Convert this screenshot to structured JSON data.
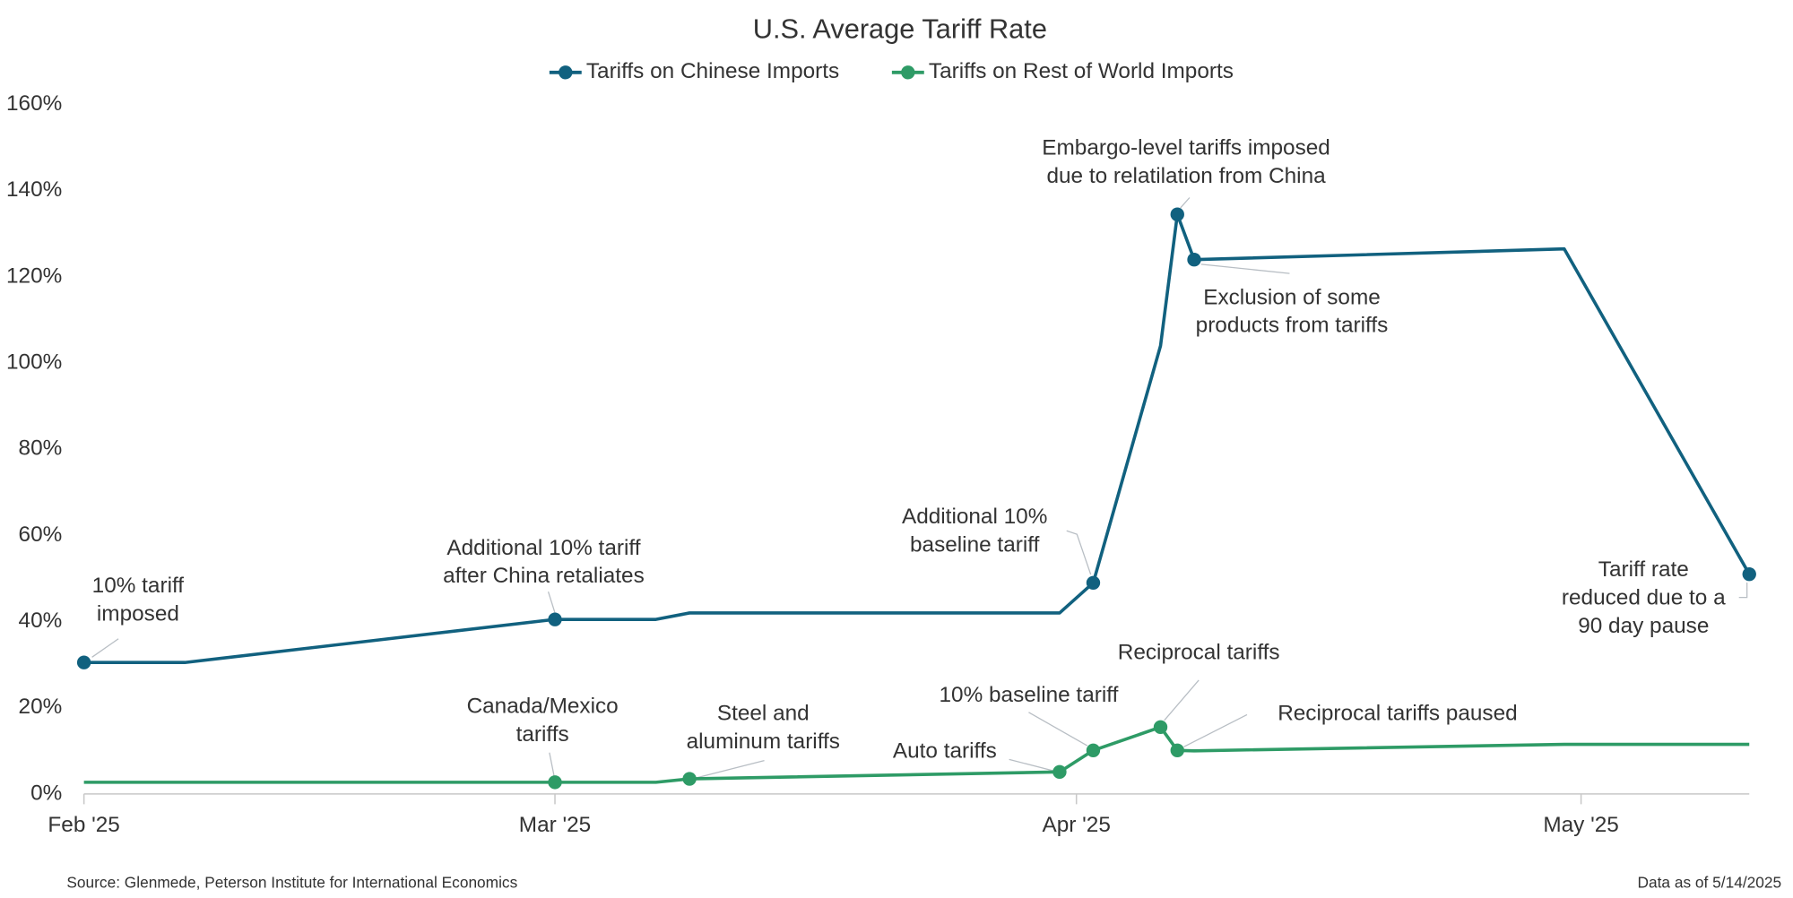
{
  "chart_data": {
    "type": "line",
    "title": "U.S. Average Tariff Rate",
    "x": [
      0,
      6,
      28,
      34,
      36,
      58,
      60,
      64,
      65,
      66,
      88,
      99
    ],
    "xlim": [
      0,
      99
    ],
    "xticks": [
      {
        "value": 0,
        "label": "Feb '25"
      },
      {
        "value": 28,
        "label": "Mar '25"
      },
      {
        "value": 59,
        "label": "Apr '25"
      },
      {
        "value": 89,
        "label": "May '25"
      }
    ],
    "ylim": [
      0,
      160
    ],
    "yticks": [
      {
        "value": 0,
        "label": "0%"
      },
      {
        "value": 20,
        "label": "20%"
      },
      {
        "value": 40,
        "label": "40%"
      },
      {
        "value": 60,
        "label": "60%"
      },
      {
        "value": 80,
        "label": "80%"
      },
      {
        "value": 100,
        "label": "100%"
      },
      {
        "value": 120,
        "label": "120%"
      },
      {
        "value": 140,
        "label": "140%"
      },
      {
        "value": 160,
        "label": "160%"
      }
    ],
    "grid": false,
    "legend": "top",
    "series": [
      {
        "name": "Tariffs on Chinese Imports",
        "color": "#11617f",
        "values": [
          30.5,
          30.5,
          40.5,
          40.5,
          42,
          42,
          49,
          104,
          134.5,
          124,
          126.5,
          51
        ]
      },
      {
        "name": "Tariffs on Rest of World Imports",
        "color": "#2e9b66",
        "values": [
          2.7,
          2.7,
          2.7,
          2.7,
          3.5,
          5.1,
          10.1,
          15.5,
          10.1,
          10,
          11.5,
          11.5
        ]
      }
    ],
    "annotations": [
      {
        "lines": [
          "10% tariff",
          "imposed"
        ],
        "series": 0,
        "index": 0
      },
      {
        "lines": [
          "Additional 10% tariff",
          "after China retaliates"
        ],
        "series": 0,
        "index": 2
      },
      {
        "lines": [
          "Additional 10%",
          "baseline tariff"
        ],
        "series": 0,
        "index": 6
      },
      {
        "lines": [
          "Embargo-level tariffs imposed",
          "due to relatilation from China"
        ],
        "series": 0,
        "index": 8
      },
      {
        "lines": [
          "Exclusion of some",
          "products from tariffs"
        ],
        "series": 0,
        "index": 9
      },
      {
        "lines": [
          "Tariff rate",
          "reduced due to a",
          "90 day pause"
        ],
        "series": 0,
        "index": 11
      },
      {
        "lines": [
          "Canada/Mexico",
          "tariffs"
        ],
        "series": 1,
        "index": 2
      },
      {
        "lines": [
          "Steel and",
          "aluminum tariffs"
        ],
        "series": 1,
        "index": 4
      },
      {
        "lines": [
          "Auto tariffs"
        ],
        "series": 1,
        "index": 5
      },
      {
        "lines": [
          "10% baseline tariff"
        ],
        "series": 1,
        "index": 6
      },
      {
        "lines": [
          "Reciprocal tariffs"
        ],
        "series": 1,
        "index": 7
      },
      {
        "lines": [
          "Reciprocal tariffs paused"
        ],
        "series": 1,
        "index": 8
      }
    ],
    "source": "Source: Glenmede, Peterson Institute for International Economics",
    "note": "Data as of 5/14/2025"
  }
}
